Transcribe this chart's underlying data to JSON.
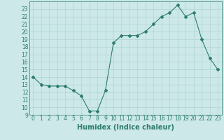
{
  "x": [
    0,
    1,
    2,
    3,
    4,
    5,
    6,
    7,
    8,
    9,
    10,
    11,
    12,
    13,
    14,
    15,
    16,
    17,
    18,
    19,
    20,
    21,
    22,
    23
  ],
  "y": [
    14,
    13,
    12.8,
    12.8,
    12.8,
    12.2,
    11.5,
    9.5,
    9.5,
    12.2,
    18.5,
    19.5,
    19.5,
    19.5,
    20,
    21,
    22,
    22.5,
    23.5,
    22,
    22.5,
    19,
    16.5,
    15
  ],
  "line_color": "#2e7d6e",
  "marker": "D",
  "marker_size": 2,
  "bg_color": "#cce8e8",
  "grid_color": "#b0d4d4",
  "xlabel": "Humidex (Indice chaleur)",
  "xlim": [
    -0.5,
    23.5
  ],
  "ylim": [
    9,
    24
  ],
  "yticks": [
    9,
    10,
    11,
    12,
    13,
    14,
    15,
    16,
    17,
    18,
    19,
    20,
    21,
    22,
    23
  ],
  "xticks": [
    0,
    1,
    2,
    3,
    4,
    5,
    6,
    7,
    8,
    9,
    10,
    11,
    12,
    13,
    14,
    15,
    16,
    17,
    18,
    19,
    20,
    21,
    22,
    23
  ],
  "tick_label_size": 5.5,
  "xlabel_size": 7,
  "label_color": "#2e7d6e",
  "spine_color": "#2e7d6e"
}
